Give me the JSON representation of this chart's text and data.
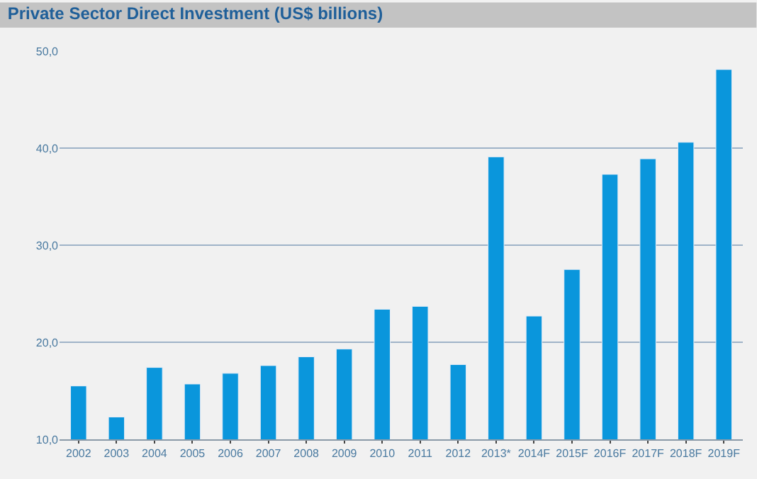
{
  "chart_data": {
    "type": "bar",
    "title": "Private Sector Direct Investment (US$ billions)",
    "categories": [
      "2002",
      "2003",
      "2004",
      "2005",
      "2006",
      "2007",
      "2008",
      "2009",
      "2010",
      "2011",
      "2012",
      "2013*",
      "2014F",
      "2015F",
      "2016F",
      "2017F",
      "2018F",
      "2019F"
    ],
    "values": [
      15.5,
      12.3,
      17.4,
      15.7,
      16.8,
      17.6,
      18.5,
      19.3,
      23.4,
      23.7,
      17.7,
      39.1,
      22.7,
      27.5,
      37.3,
      38.9,
      40.6,
      48.1
    ],
    "color": "#0a96dc",
    "ylim": [
      10,
      50
    ],
    "yticks": [
      {
        "value": 10,
        "label": "10,0"
      },
      {
        "value": 20,
        "label": "20,0"
      },
      {
        "value": 30,
        "label": "30,0"
      },
      {
        "value": 40,
        "label": "40,0"
      },
      {
        "value": 50,
        "label": "50,0"
      }
    ],
    "grid": "y",
    "legend": false
  }
}
